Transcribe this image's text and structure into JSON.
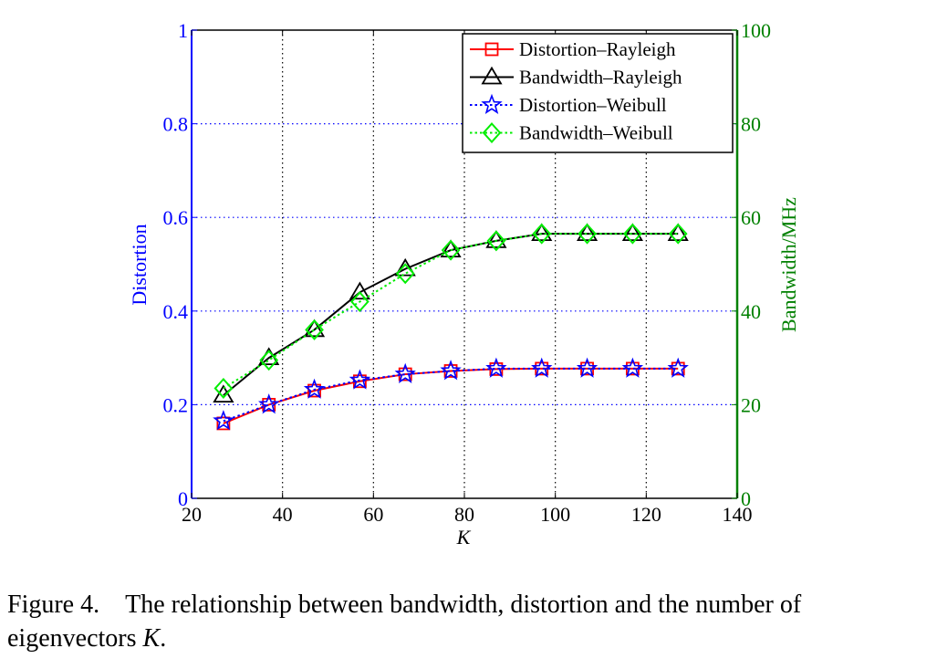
{
  "chart_data": {
    "type": "line",
    "x": [
      27,
      37,
      47,
      57,
      67,
      77,
      87,
      97,
      107,
      117,
      127
    ],
    "xlabel": "K",
    "xlim": [
      20,
      140
    ],
    "xticks": [
      "20",
      "40",
      "60",
      "80",
      "100",
      "120",
      "140"
    ],
    "ylabel_left": "Distortion",
    "ylim_left": [
      0,
      1
    ],
    "yticks_left": [
      "0",
      "0.2",
      "0.4",
      "0.6",
      "0.8",
      "1"
    ],
    "ylabel_right": "Bandwidth/MHz",
    "ylim_right": [
      0,
      100
    ],
    "yticks_right": [
      "0",
      "20",
      "40",
      "60",
      "80",
      "100"
    ],
    "grid": true,
    "legend_position": "top-right",
    "colors": {
      "left_axis": "#0000ff",
      "right_axis": "#008000",
      "frame": "#000000"
    },
    "series": [
      {
        "name": "Distortion–Rayleigh",
        "axis": "left",
        "color": "#ff0000",
        "line": "solid",
        "marker": "square",
        "values": [
          0.16,
          0.2,
          0.23,
          0.25,
          0.265,
          0.272,
          0.276,
          0.277,
          0.277,
          0.277,
          0.277
        ]
      },
      {
        "name": "Bandwidth–Rayleigh",
        "axis": "right",
        "color": "#000000",
        "line": "solid",
        "marker": "triangle",
        "values": [
          22,
          30,
          36,
          44,
          49,
          53,
          55,
          56.5,
          56.5,
          56.5,
          56.5
        ]
      },
      {
        "name": "Distortion–Weibull",
        "axis": "left",
        "color": "#0000ff",
        "line": "dotted",
        "marker": "star",
        "values": [
          0.165,
          0.2,
          0.232,
          0.252,
          0.265,
          0.272,
          0.277,
          0.277,
          0.277,
          0.277,
          0.277
        ]
      },
      {
        "name": "Bandwidth–Weibull",
        "axis": "right",
        "color": "#00ee00",
        "line": "dotted",
        "marker": "diamond",
        "values": [
          23.5,
          29.5,
          36,
          42,
          48,
          53,
          55,
          56.5,
          56.5,
          56.5,
          56.5
        ]
      }
    ]
  },
  "caption": {
    "prefix": "Figure 4. The relationship between bandwidth, distortion and the number of eigenvectors ",
    "variable": "K",
    "suffix": "."
  }
}
